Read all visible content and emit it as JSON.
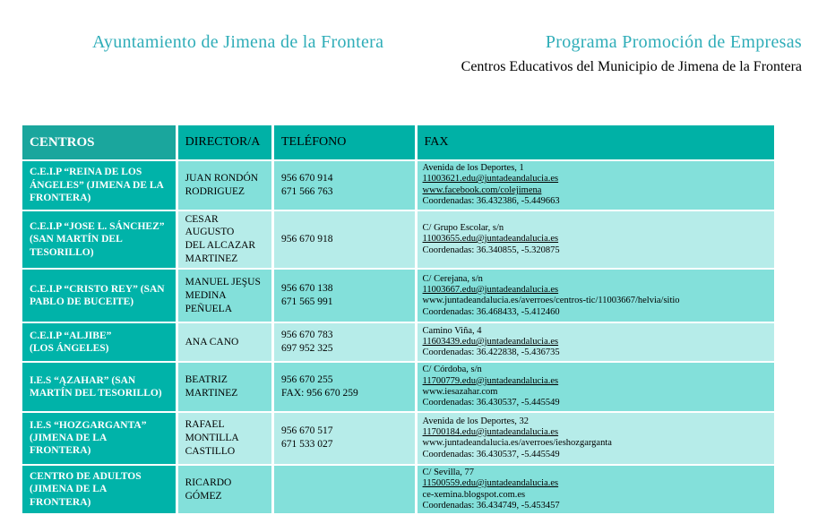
{
  "header": {
    "title_left": "Ayuntamiento de Jimena de la Frontera",
    "title_right": "Programa Promoción de Empresas",
    "subtitle": "Centros Educativos del Municipio de Jimena de la Frontera"
  },
  "colors": {
    "title_teal": "#2fadb8",
    "header_centros_bg": "#1aa69d",
    "header_bg": "#00b1a6",
    "centros_column_bg": "#00b3a9",
    "row_dark_bg": "#83e0da",
    "row_light_bg": "#b6ece9"
  },
  "table": {
    "columns": [
      "CENTROS",
      "DIRECTOR/A",
      "TELÉFONO",
      "FAX"
    ],
    "rows": [
      {
        "centro": "C.E.I.P “REINA DE LOS\nÁNGELES” (JIMENA DE LA\nFRONTERA)",
        "director": "JUAN RONDÓN\nRODRIGUEZ",
        "telefono": "956 670 914\n671 566 763",
        "fax": [
          "Avenida de los Deportes, 1",
          "11003621.edu@juntadeandalucia.es",
          "www.facebook.com/colejimena",
          "Coordenadas: 36.432386, -5.449663"
        ]
      },
      {
        "centro": "C.E.I.P “JOSE L. SÁNCHEZ”\n(SAN MARTÍN DEL\nTESORILLO)",
        "director": "CESAR AUGUSTO\nDEL ALCAZAR\nMARTINEZ",
        "telefono": "956 670 918",
        "fax": [
          "C/ Grupo Escolar, s/n",
          "11003655.edu@juntadeandalucia.es",
          "Coordenadas: 36.340855, -5.320875"
        ]
      },
      {
        "centro": "C.E.I.P “CRISTO REY” (SAN\nPABLO DE BUCEITE)",
        "director": "MANUEL JEŞUS\nMEDINA PEÑUELA",
        "telefono": "956 670 138\n671 565 991",
        "fax": [
          "C/ Cerejana, s/n",
          "11003667.edu@juntadeandalucia.es",
          "www.juntadeandalucia.es/averroes/centros-tic/11003667/helvia/sitio",
          "Coordenadas: 36.468433, -5.412460"
        ]
      },
      {
        "centro": "C.E.I.P “ALJIBE”\n(LOS ÁNGELES)",
        "director": "ANA CANO",
        "telefono": "956 670 783\n697 952 325",
        "fax": [
          "Camino Viña, 4",
          "11603439.edu@juntadeandalucia.es",
          "Coordenadas: 36.422838, -5.436735"
        ]
      },
      {
        "centro": "I.E.S “ĄZAHAR” (SAN\nMARTÍN DEL TESORILLO)",
        "director": "BEATRIZ\nMARTINEZ",
        "telefono": "956 670 255\nFAX: 956 670 259",
        "fax": [
          "C/ Córdoba, s/n",
          "11700779.edu@juntadeandalucia.es",
          "www.iesazahar.com",
          "Coordenadas: 36.430537, -5.445549"
        ]
      },
      {
        "centro": "I.E.S “HOZGARGANTA”\n(JIMENA DE LA FRONTERA)",
        "director": "RAFAEL\nMONTILLA\nCASTILLO",
        "telefono": "956 670 517\n671 533 027",
        "fax": [
          "Avenida de los Deportes, 32",
          "11700184.edu@juntadeandalucia.es",
          "www.juntadeandalucia.es/averroes/ieshozgarganta",
          "Coordenadas: 36.430537, -5.445549"
        ]
      },
      {
        "centro": "CENTRO DE ADULTOS\n(JIMENA DE LA FRONTERA)",
        "director": "RICARDO GÓMEZ",
        "telefono": "",
        "fax": [
          "C/ Sevilla, 77",
          "11500559.edu@juntadeandalucia.es",
          "ce-xemina.blogspot.com.es",
          "Coordenadas: 36.434749, -5.453457"
        ]
      }
    ]
  }
}
